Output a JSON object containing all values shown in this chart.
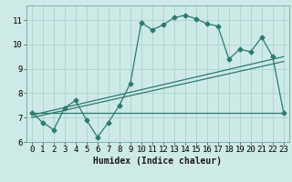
{
  "xlabel": "Humidex (Indice chaleur)",
  "x_data": [
    0,
    1,
    2,
    3,
    4,
    5,
    6,
    7,
    8,
    9,
    10,
    11,
    12,
    13,
    14,
    15,
    16,
    17,
    18,
    19,
    20,
    21,
    22,
    23
  ],
  "y_main": [
    7.2,
    6.8,
    6.5,
    7.4,
    7.7,
    6.9,
    6.2,
    6.8,
    7.5,
    8.4,
    10.9,
    10.6,
    10.8,
    11.1,
    11.2,
    11.05,
    10.85,
    10.75,
    9.4,
    9.8,
    9.7,
    10.3,
    9.5,
    7.2
  ],
  "trend_line1_x": [
    0,
    23
  ],
  "trend_line1_y": [
    7.0,
    9.3
  ],
  "trend_line2_x": [
    0,
    23
  ],
  "trend_line2_y": [
    7.1,
    9.5
  ],
  "trend_line3_x": [
    0,
    23
  ],
  "trend_line3_y": [
    7.2,
    7.2
  ],
  "line_color": "#2d7a6e",
  "bg_color": "#ceeae6",
  "grid_color": "#aad4ce",
  "ylim": [
    6.0,
    11.6
  ],
  "yticks": [
    6,
    7,
    8,
    9,
    10,
    11
  ],
  "xlim": [
    -0.5,
    23.5
  ],
  "xticks": [
    0,
    1,
    2,
    3,
    4,
    5,
    6,
    7,
    8,
    9,
    10,
    11,
    12,
    13,
    14,
    15,
    16,
    17,
    18,
    19,
    20,
    21,
    22,
    23
  ],
  "marker": "D",
  "markersize": 2.5,
  "linewidth": 0.9,
  "xlabel_fontsize": 7,
  "tick_fontsize": 6.5
}
